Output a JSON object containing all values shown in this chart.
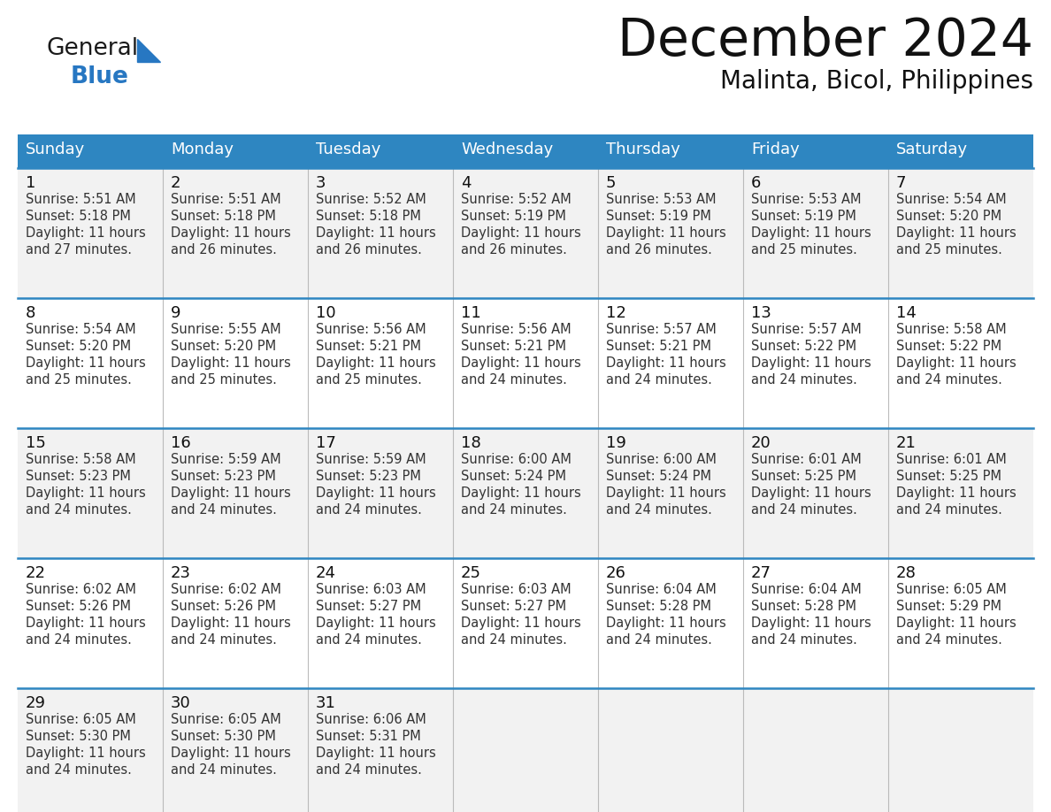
{
  "title": "December 2024",
  "subtitle": "Malinta, Bicol, Philippines",
  "header_bg": "#2E86C1",
  "header_text": "#FFFFFF",
  "day_names": [
    "Sunday",
    "Monday",
    "Tuesday",
    "Wednesday",
    "Thursday",
    "Friday",
    "Saturday"
  ],
  "row_bg_odd": "#F2F2F2",
  "row_bg_even": "#FFFFFF",
  "cell_border": "#2E86C1",
  "logo_general_color": "#1a1a1a",
  "logo_blue_color": "#2777C2",
  "days": [
    {
      "date": 1,
      "dow": 0,
      "sunrise": "5:51 AM",
      "sunset": "5:18 PM",
      "daylight": "11 hours and 27 minutes."
    },
    {
      "date": 2,
      "dow": 1,
      "sunrise": "5:51 AM",
      "sunset": "5:18 PM",
      "daylight": "11 hours and 26 minutes."
    },
    {
      "date": 3,
      "dow": 2,
      "sunrise": "5:52 AM",
      "sunset": "5:18 PM",
      "daylight": "11 hours and 26 minutes."
    },
    {
      "date": 4,
      "dow": 3,
      "sunrise": "5:52 AM",
      "sunset": "5:19 PM",
      "daylight": "11 hours and 26 minutes."
    },
    {
      "date": 5,
      "dow": 4,
      "sunrise": "5:53 AM",
      "sunset": "5:19 PM",
      "daylight": "11 hours and 26 minutes."
    },
    {
      "date": 6,
      "dow": 5,
      "sunrise": "5:53 AM",
      "sunset": "5:19 PM",
      "daylight": "11 hours and 25 minutes."
    },
    {
      "date": 7,
      "dow": 6,
      "sunrise": "5:54 AM",
      "sunset": "5:20 PM",
      "daylight": "11 hours and 25 minutes."
    },
    {
      "date": 8,
      "dow": 0,
      "sunrise": "5:54 AM",
      "sunset": "5:20 PM",
      "daylight": "11 hours and 25 minutes."
    },
    {
      "date": 9,
      "dow": 1,
      "sunrise": "5:55 AM",
      "sunset": "5:20 PM",
      "daylight": "11 hours and 25 minutes."
    },
    {
      "date": 10,
      "dow": 2,
      "sunrise": "5:56 AM",
      "sunset": "5:21 PM",
      "daylight": "11 hours and 25 minutes."
    },
    {
      "date": 11,
      "dow": 3,
      "sunrise": "5:56 AM",
      "sunset": "5:21 PM",
      "daylight": "11 hours and 24 minutes."
    },
    {
      "date": 12,
      "dow": 4,
      "sunrise": "5:57 AM",
      "sunset": "5:21 PM",
      "daylight": "11 hours and 24 minutes."
    },
    {
      "date": 13,
      "dow": 5,
      "sunrise": "5:57 AM",
      "sunset": "5:22 PM",
      "daylight": "11 hours and 24 minutes."
    },
    {
      "date": 14,
      "dow": 6,
      "sunrise": "5:58 AM",
      "sunset": "5:22 PM",
      "daylight": "11 hours and 24 minutes."
    },
    {
      "date": 15,
      "dow": 0,
      "sunrise": "5:58 AM",
      "sunset": "5:23 PM",
      "daylight": "11 hours and 24 minutes."
    },
    {
      "date": 16,
      "dow": 1,
      "sunrise": "5:59 AM",
      "sunset": "5:23 PM",
      "daylight": "11 hours and 24 minutes."
    },
    {
      "date": 17,
      "dow": 2,
      "sunrise": "5:59 AM",
      "sunset": "5:23 PM",
      "daylight": "11 hours and 24 minutes."
    },
    {
      "date": 18,
      "dow": 3,
      "sunrise": "6:00 AM",
      "sunset": "5:24 PM",
      "daylight": "11 hours and 24 minutes."
    },
    {
      "date": 19,
      "dow": 4,
      "sunrise": "6:00 AM",
      "sunset": "5:24 PM",
      "daylight": "11 hours and 24 minutes."
    },
    {
      "date": 20,
      "dow": 5,
      "sunrise": "6:01 AM",
      "sunset": "5:25 PM",
      "daylight": "11 hours and 24 minutes."
    },
    {
      "date": 21,
      "dow": 6,
      "sunrise": "6:01 AM",
      "sunset": "5:25 PM",
      "daylight": "11 hours and 24 minutes."
    },
    {
      "date": 22,
      "dow": 0,
      "sunrise": "6:02 AM",
      "sunset": "5:26 PM",
      "daylight": "11 hours and 24 minutes."
    },
    {
      "date": 23,
      "dow": 1,
      "sunrise": "6:02 AM",
      "sunset": "5:26 PM",
      "daylight": "11 hours and 24 minutes."
    },
    {
      "date": 24,
      "dow": 2,
      "sunrise": "6:03 AM",
      "sunset": "5:27 PM",
      "daylight": "11 hours and 24 minutes."
    },
    {
      "date": 25,
      "dow": 3,
      "sunrise": "6:03 AM",
      "sunset": "5:27 PM",
      "daylight": "11 hours and 24 minutes."
    },
    {
      "date": 26,
      "dow": 4,
      "sunrise": "6:04 AM",
      "sunset": "5:28 PM",
      "daylight": "11 hours and 24 minutes."
    },
    {
      "date": 27,
      "dow": 5,
      "sunrise": "6:04 AM",
      "sunset": "5:28 PM",
      "daylight": "11 hours and 24 minutes."
    },
    {
      "date": 28,
      "dow": 6,
      "sunrise": "6:05 AM",
      "sunset": "5:29 PM",
      "daylight": "11 hours and 24 minutes."
    },
    {
      "date": 29,
      "dow": 0,
      "sunrise": "6:05 AM",
      "sunset": "5:30 PM",
      "daylight": "11 hours and 24 minutes."
    },
    {
      "date": 30,
      "dow": 1,
      "sunrise": "6:05 AM",
      "sunset": "5:30 PM",
      "daylight": "11 hours and 24 minutes."
    },
    {
      "date": 31,
      "dow": 2,
      "sunrise": "6:06 AM",
      "sunset": "5:31 PM",
      "daylight": "11 hours and 24 minutes."
    }
  ]
}
